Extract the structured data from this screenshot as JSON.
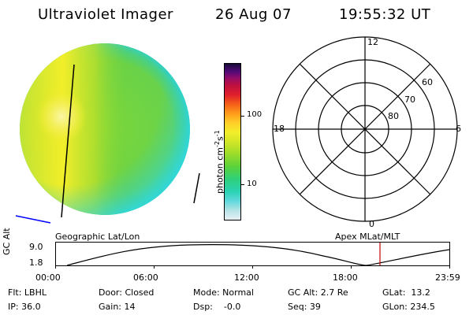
{
  "header": {
    "title": "Ultraviolet Imager",
    "date": "26 Aug 07",
    "time": "19:55:32 UT"
  },
  "colorbar": {
    "unit_base": "photon cm",
    "unit_exp1": "-2",
    "unit_mid": "s",
    "unit_exp2": "-1",
    "tick_labels": [
      "100",
      "10"
    ]
  },
  "polar_plot": {
    "mlt_labels": {
      "top": "12",
      "left": "18",
      "right": "6",
      "bottom": "0"
    },
    "lat_labels": [
      "60",
      "70",
      "80"
    ]
  },
  "timeline": {
    "left_label": "Geographic Lat/Lon",
    "right_label": "Apex MLat/MLT",
    "axis_title": "GC Alt",
    "axis_max": "9.0",
    "axis_min": "1.8",
    "time_ticks": [
      "00:00",
      "06:00",
      "12:00",
      "18:00",
      "23:59"
    ]
  },
  "status": {
    "flt": "Flt: LBHL",
    "ip": "IP: 36.0",
    "door": "Door: Closed",
    "gain": "Gain: 14",
    "mode": "Mode: Normal",
    "dsp": "Dsp:    -0.0",
    "gc_alt": "GC Alt: 2.7 Re",
    "seq": "Seq: 39",
    "glat": "GLat:  13.2",
    "glon": "GLon: 234.5"
  },
  "colors": {
    "background": "#ffffff",
    "foreground": "#000000",
    "current_time_marker": "#c00000",
    "earth_low": "#5ad23a",
    "earth_bright": "#f2ee2a",
    "earth_limb": "#2bd3c8",
    "horizon_line": "#0000ff"
  }
}
